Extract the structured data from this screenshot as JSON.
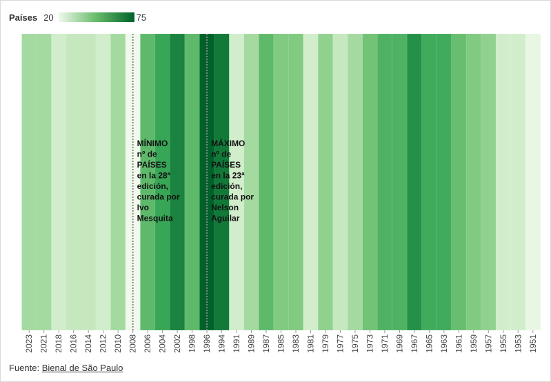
{
  "chart_data": {
    "type": "heatmap",
    "legend": {
      "title": "Países",
      "min": 20,
      "max": 75,
      "color_low": "#f0f9ec",
      "color_high": "#00612a"
    },
    "categories": [
      "2023",
      "2021",
      "2018",
      "2016",
      "2014",
      "2012",
      "2010",
      "2008",
      "2006",
      "2004",
      "2002",
      "1998",
      "1996",
      "1994",
      "1991",
      "1989",
      "1987",
      "1985",
      "1983",
      "1981",
      "1979",
      "1977",
      "1975",
      "1973",
      "1971",
      "1969",
      "1967",
      "1965",
      "1963",
      "1961",
      "1959",
      "1957",
      "1955",
      "1953",
      "1951"
    ],
    "values": [
      38,
      38,
      28,
      31,
      31,
      28,
      38,
      20,
      52,
      60,
      68,
      52,
      75,
      70,
      28,
      38,
      52,
      45,
      45,
      28,
      42,
      31,
      38,
      48,
      55,
      55,
      65,
      58,
      58,
      50,
      45,
      42,
      28,
      28,
      22
    ],
    "annotations": [
      {
        "year": "2008",
        "text": [
          "MÍNIMO",
          "nº de",
          "PAÍSES",
          "en la 28ª",
          "edición,",
          "curada por",
          "Ivo",
          "Mesquita"
        ]
      },
      {
        "year": "1996",
        "text": [
          "MÁXIMO",
          "nº de",
          "PAÍSES",
          "en la 23ª",
          "edición,",
          "curada por",
          "Nelson",
          "Aguilar"
        ]
      }
    ]
  },
  "source": {
    "label": "Fuente:",
    "link_text": "Bienal de São Paulo"
  }
}
